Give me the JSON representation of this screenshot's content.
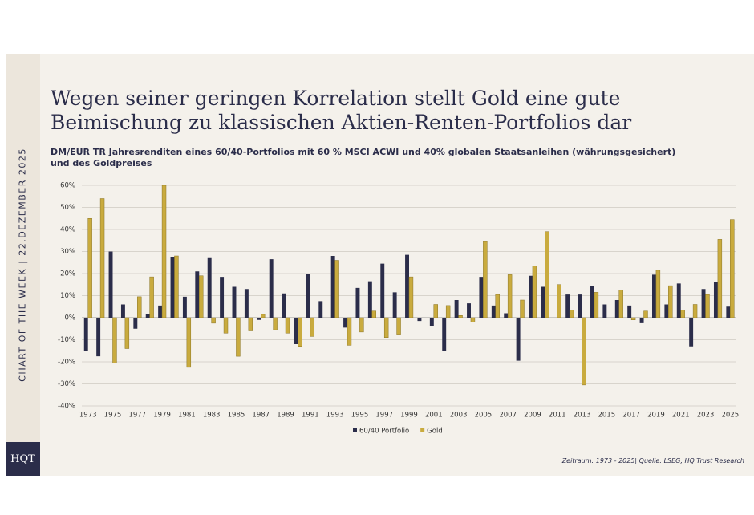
{
  "sidebar": "CHART OF THE WEEK | 22.DEZEMBER 2025",
  "logo": "HQT",
  "chart_data": {
    "type": "bar",
    "title": "Wegen seiner geringen Korrelation stellt Gold eine gute Beimischung zu klassischen Aktien-Renten-Portfolios dar",
    "subtitle": "DM/EUR TR Jahresrenditen eines 60/40-Portfolios mit 60 % MSCI ACWI und 40% globalen Staatsanleihen (währungsgesichert) und des Goldpreises",
    "source": "Zeitraum: 1973 - 2025| Quelle: LSEG, HQ Trust Research",
    "categories": [
      "1973",
      null,
      "1975",
      null,
      "1977",
      null,
      "1979",
      null,
      "1981",
      null,
      "1983",
      null,
      "1985",
      null,
      "1987",
      null,
      "1989",
      null,
      "1991",
      null,
      "1993",
      null,
      "1995",
      null,
      "1997",
      null,
      "1999",
      null,
      "2001",
      null,
      "2003",
      null,
      "2005",
      null,
      "2007",
      null,
      "2009",
      null,
      "2011",
      null,
      "2013",
      null,
      "2015",
      null,
      "2017",
      null,
      "2019",
      null,
      "2021",
      null,
      "2023",
      null,
      "2025"
    ],
    "series": [
      {
        "name": "60/40 Portfolio",
        "color": "#2b2d4a",
        "values": [
          -15,
          -17.5,
          30,
          6,
          -5,
          1.5,
          5.5,
          27.5,
          9.5,
          21,
          27,
          18.5,
          14,
          13,
          -1,
          26.5,
          11,
          -12,
          20,
          7.5,
          28,
          -4.5,
          13.5,
          16.5,
          24.5,
          11.5,
          28.5,
          -1.5,
          -4,
          -15,
          8,
          6.5,
          18.5,
          5.5,
          2,
          -19.5,
          19,
          14,
          0,
          10.5,
          10.5,
          14.5,
          6,
          8,
          5.5,
          -2.5,
          19.5,
          6,
          15.5,
          -13,
          13,
          16,
          5
        ]
      },
      {
        "name": "Gold",
        "color": "#c9ab3e",
        "values": [
          45,
          54,
          -20.5,
          -14,
          9.5,
          18.5,
          60,
          28,
          -22.5,
          19,
          -2.5,
          -7,
          -17.5,
          -6,
          1.5,
          -5.5,
          -7,
          -13,
          -8.5,
          0,
          26,
          -12.5,
          -6.5,
          3,
          -9,
          -7.5,
          18.5,
          0,
          6,
          5.5,
          1,
          -2,
          34.5,
          10.5,
          19.5,
          8,
          23.5,
          39,
          15,
          3.5,
          -30.5,
          11.5,
          0,
          12.5,
          -1,
          3,
          21.5,
          14.5,
          3.5,
          6,
          10.5,
          35.5,
          44.5
        ]
      }
    ],
    "ylim": [
      -40,
      60
    ],
    "yticks": [
      {
        "value": -40,
        "label": "-40%"
      },
      {
        "value": -30,
        "label": "-30%"
      },
      {
        "value": -20,
        "label": "-20%"
      },
      {
        "value": -10,
        "label": "-10%"
      },
      {
        "value": 0,
        "label": "0%"
      },
      {
        "value": 10,
        "label": "10%"
      },
      {
        "value": 20,
        "label": "20%"
      },
      {
        "value": 30,
        "label": "30%"
      },
      {
        "value": 40,
        "label": "40%"
      },
      {
        "value": 50,
        "label": "50%"
      },
      {
        "value": 60,
        "label": "60%"
      }
    ],
    "grid": true
  }
}
